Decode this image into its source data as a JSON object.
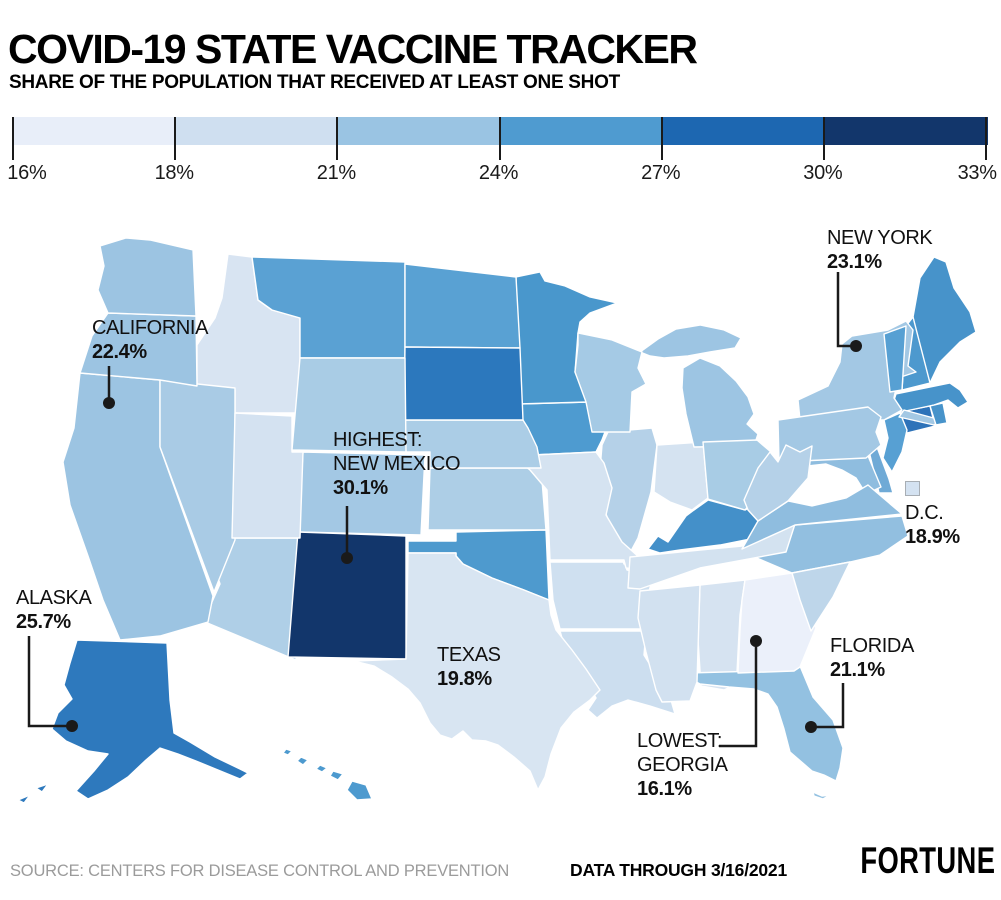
{
  "header": {
    "title": "COVID-19 STATE VACCINE TRACKER",
    "subtitle": "SHARE OF THE POPULATION THAT RECEIVED AT LEAST ONE SHOT"
  },
  "footer": {
    "source": "SOURCE: CENTERS FOR DISEASE CONTROL AND PREVENTION",
    "data_through": "DATA THROUGH 3/16/2021",
    "brand": "FORTUNE"
  },
  "chart_data": {
    "type": "heatmap",
    "subtype": "us-state-choropleth-map",
    "title": "COVID-19 STATE VACCINE TRACKER",
    "subtitle": "SHARE OF THE POPULATION THAT RECEIVED AT LEAST ONE SHOT",
    "unit": "% of population with at least one shot",
    "legend": {
      "position": "top",
      "stops": [
        16,
        18,
        21,
        24,
        27,
        30,
        33
      ],
      "tick_labels": [
        "16%",
        "18%",
        "21%",
        "24%",
        "27%",
        "30%",
        "33%"
      ],
      "segment_colors": [
        "#E8EEF9",
        "#CFDFF0",
        "#9AC4E3",
        "#4F9BD0",
        "#1D67B1",
        "#12366B"
      ]
    },
    "highest": {
      "state": "New Mexico",
      "value": 30.1
    },
    "lowest": {
      "state": "Georgia",
      "value": 16.1
    },
    "callouts": [
      {
        "id": "new-york",
        "lines": [
          "NEW YORK"
        ],
        "value": "23.1%"
      },
      {
        "id": "california",
        "lines": [
          "CALIFORNIA"
        ],
        "value": "22.4%"
      },
      {
        "id": "new-mexico",
        "lines": [
          "HIGHEST:",
          "NEW MEXICO"
        ],
        "value": "30.1%"
      },
      {
        "id": "dc",
        "lines": [
          "D.C."
        ],
        "value": "18.9%"
      },
      {
        "id": "alaska",
        "lines": [
          "ALASKA"
        ],
        "value": "25.7%"
      },
      {
        "id": "texas",
        "lines": [
          "TEXAS"
        ],
        "value": "19.8%"
      },
      {
        "id": "florida",
        "lines": [
          "FLORIDA"
        ],
        "value": "21.1%"
      },
      {
        "id": "georgia",
        "lines": [
          "LOWEST:",
          "GEORGIA"
        ],
        "value": "16.1%"
      }
    ],
    "states": [
      {
        "code": "AL",
        "name": "Alabama",
        "color": "#D6E3F1"
      },
      {
        "code": "AK",
        "name": "Alaska",
        "color": "#2E79BD",
        "value": 25.7
      },
      {
        "code": "AZ",
        "name": "Arizona",
        "color": "#AFCFE7"
      },
      {
        "code": "AR",
        "name": "Arkansas",
        "color": "#CFE0F0"
      },
      {
        "code": "CA",
        "name": "California",
        "color": "#9CC4E2",
        "value": 22.4
      },
      {
        "code": "CO",
        "name": "Colorado",
        "color": "#A3C8E4"
      },
      {
        "code": "CT",
        "name": "Connecticut",
        "color": "#2E73B9"
      },
      {
        "code": "DE",
        "name": "Delaware",
        "color": "#6FAAD6"
      },
      {
        "code": "DC",
        "name": "District of Columbia",
        "color": "#D4E2F1",
        "value": 18.9
      },
      {
        "code": "FL",
        "name": "Florida",
        "color": "#93C1E1",
        "value": 21.1
      },
      {
        "code": "GA",
        "name": "Georgia",
        "color": "#EBF0FA",
        "value": 16.1
      },
      {
        "code": "HI",
        "name": "Hawaii",
        "color": "#4D9ACF"
      },
      {
        "code": "ID",
        "name": "Idaho",
        "color": "#D8E4F2"
      },
      {
        "code": "IL",
        "name": "Illinois",
        "color": "#B5D1E8"
      },
      {
        "code": "IN",
        "name": "Indiana",
        "color": "#D5E3F1"
      },
      {
        "code": "IA",
        "name": "Iowa",
        "color": "#4E9BD0"
      },
      {
        "code": "KS",
        "name": "Kansas",
        "color": "#ADCEE6"
      },
      {
        "code": "KY",
        "name": "Kentucky",
        "color": "#4490C9"
      },
      {
        "code": "LA",
        "name": "Louisiana",
        "color": "#CCDEEF"
      },
      {
        "code": "ME",
        "name": "Maine",
        "color": "#4793CA"
      },
      {
        "code": "MD",
        "name": "Maryland",
        "color": "#8FBDDF"
      },
      {
        "code": "MA",
        "name": "Massachusetts",
        "color": "#4793CA"
      },
      {
        "code": "MI",
        "name": "Michigan",
        "color": "#9DC5E3"
      },
      {
        "code": "MN",
        "name": "Minnesota",
        "color": "#4997CC"
      },
      {
        "code": "MS",
        "name": "Mississippi",
        "color": "#D2E1F0"
      },
      {
        "code": "MO",
        "name": "Missouri",
        "color": "#D5E3F1"
      },
      {
        "code": "MT",
        "name": "Montana",
        "color": "#5AA1D3"
      },
      {
        "code": "NE",
        "name": "Nebraska",
        "color": "#ABCDE6"
      },
      {
        "code": "NV",
        "name": "Nevada",
        "color": "#A9CBE5"
      },
      {
        "code": "NH",
        "name": "New Hampshire",
        "color": "#4D99CE"
      },
      {
        "code": "NJ",
        "name": "New Jersey",
        "color": "#57A0D3"
      },
      {
        "code": "NM",
        "name": "New Mexico",
        "color": "#12366B",
        "value": 30.1
      },
      {
        "code": "NY",
        "name": "New York",
        "color": "#A3C8E4",
        "value": 23.1
      },
      {
        "code": "NC",
        "name": "North Carolina",
        "color": "#92BFE0"
      },
      {
        "code": "ND",
        "name": "North Dakota",
        "color": "#59A1D3"
      },
      {
        "code": "OH",
        "name": "Ohio",
        "color": "#A8CCE5"
      },
      {
        "code": "OK",
        "name": "Oklahoma",
        "color": "#4E9ACE"
      },
      {
        "code": "OR",
        "name": "Oregon",
        "color": "#9CC4E2"
      },
      {
        "code": "PA",
        "name": "Pennsylvania",
        "color": "#A3C8E4"
      },
      {
        "code": "RI",
        "name": "Rhode Island",
        "color": "#4793CA"
      },
      {
        "code": "SC",
        "name": "South Carolina",
        "color": "#BED6EA"
      },
      {
        "code": "SD",
        "name": "South Dakota",
        "color": "#2C78BD"
      },
      {
        "code": "TN",
        "name": "Tennessee",
        "color": "#D3E2F0"
      },
      {
        "code": "TX",
        "name": "Texas",
        "color": "#D8E5F2",
        "value": 19.8
      },
      {
        "code": "UT",
        "name": "Utah",
        "color": "#D4E2F1"
      },
      {
        "code": "VT",
        "name": "Vermont",
        "color": "#57A0D3"
      },
      {
        "code": "VA",
        "name": "Virginia",
        "color": "#8FBDDF"
      },
      {
        "code": "WA",
        "name": "Washington",
        "color": "#9CC4E2"
      },
      {
        "code": "WV",
        "name": "West Virginia",
        "color": "#B5D1E8"
      },
      {
        "code": "WI",
        "name": "Wisconsin",
        "color": "#A5CAE5"
      },
      {
        "code": "WY",
        "name": "Wyoming",
        "color": "#A9CCE5"
      }
    ],
    "annotation_line_color": "#1a1a1a",
    "state_border_color": "#ffffff"
  }
}
